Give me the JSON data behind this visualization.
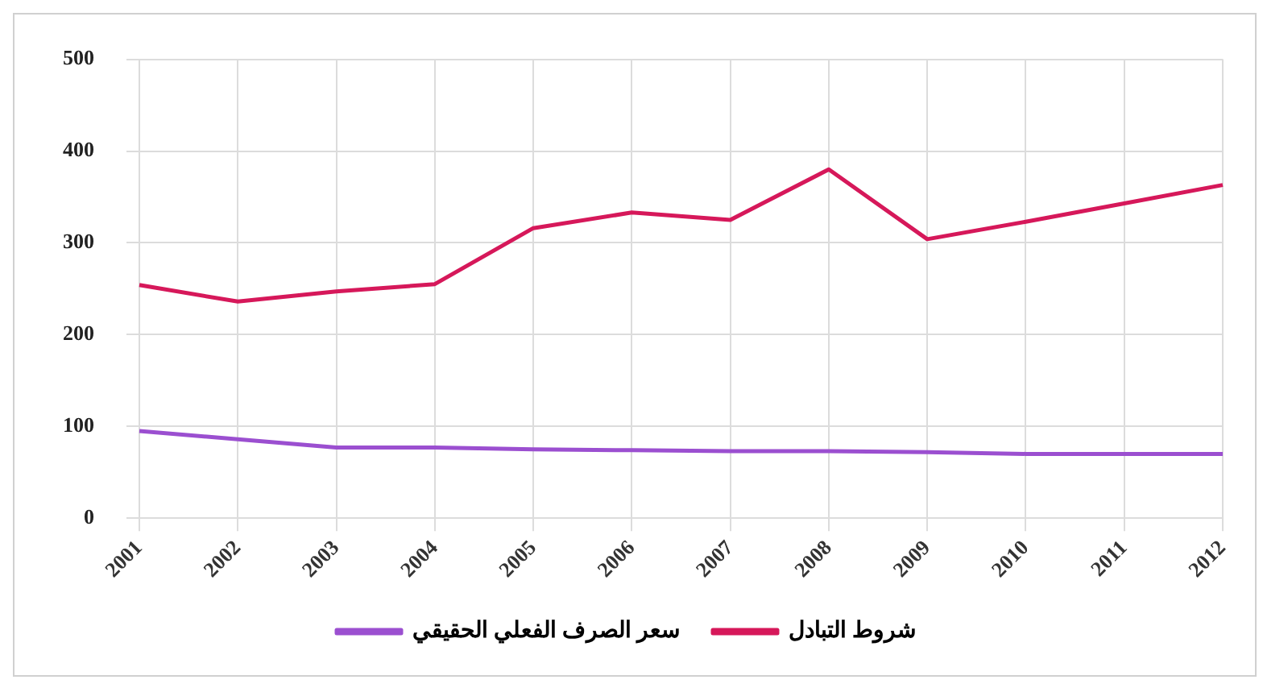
{
  "chart_data": {
    "type": "line",
    "categories": [
      "2001",
      "2002",
      "2003",
      "2004",
      "2005",
      "2006",
      "2007",
      "2008",
      "2009",
      "2010",
      "2011",
      "2012"
    ],
    "series": [
      {
        "name": "سعر الصرف الفعلي الحقيقي",
        "color": "#9b4fd0",
        "values": [
          95,
          86,
          77,
          77,
          75,
          74,
          73,
          73,
          72,
          70,
          70,
          70
        ]
      },
      {
        "name": "شروط التبادل",
        "color": "#d6185a",
        "values": [
          254,
          236,
          247,
          255,
          316,
          333,
          325,
          380,
          304,
          323,
          343,
          363
        ]
      }
    ],
    "ylim": [
      0,
      500
    ],
    "yticks": [
      0,
      100,
      200,
      300,
      400,
      500
    ],
    "grid": true,
    "legend": "bottom",
    "marker": "none",
    "line_style": "solid"
  }
}
